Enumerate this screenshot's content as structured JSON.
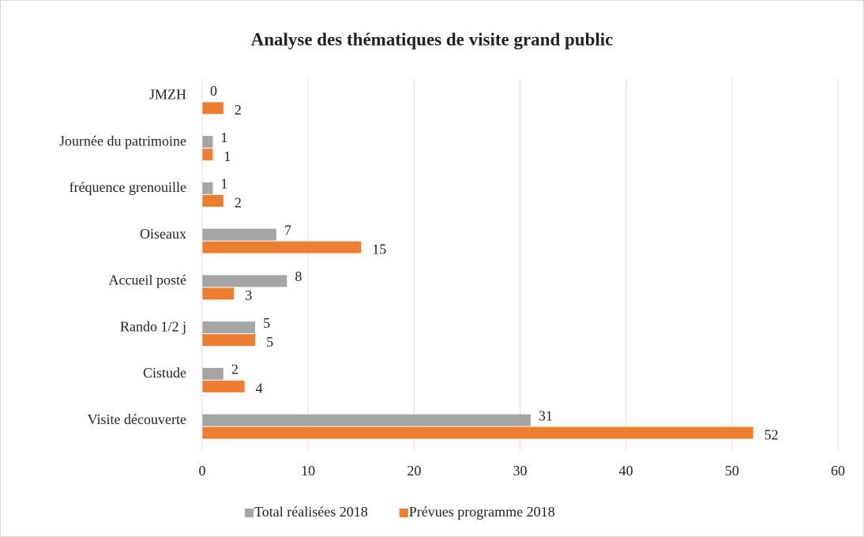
{
  "chart_data": {
    "type": "hbar",
    "title": "Analyse des thématiques de visite grand public",
    "categories": [
      "JMZH",
      "Journée du patrimoine",
      "fréquence grenouille",
      "Oiseaux",
      "Accueil posté",
      "Rando 1/2 j",
      "Cistude",
      "Visite découverte"
    ],
    "series": [
      {
        "name": "Total réalisées 2018",
        "color": "#a5a5a5",
        "values": [
          0,
          1,
          1,
          7,
          8,
          5,
          2,
          31
        ]
      },
      {
        "name": "Prévues programme 2018",
        "color": "#ed7d31",
        "values": [
          2,
          1,
          2,
          15,
          3,
          5,
          4,
          52
        ]
      }
    ],
    "xlim": [
      0,
      60
    ],
    "xticks": [
      0,
      10,
      20,
      30,
      40,
      50,
      60
    ],
    "grid": true,
    "legend": "bottom"
  }
}
